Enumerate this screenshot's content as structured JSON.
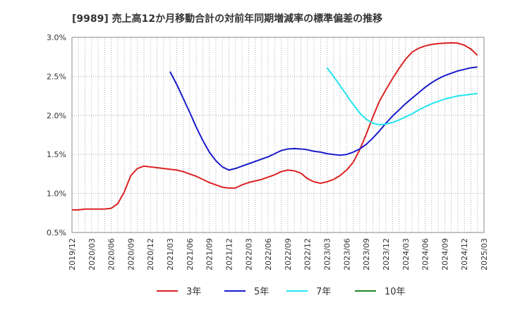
{
  "chart_data": {
    "type": "line",
    "title": "[9989]  売上高12か月移動合計の対前年同期増減率の標準偏差の推移",
    "xlabel": "",
    "ylabel": "",
    "ylim": [
      0.5,
      3.0
    ],
    "y_ticks": [
      "0.5%",
      "1.0%",
      "1.5%",
      "2.0%",
      "2.5%",
      "3.0%"
    ],
    "y_tick_values": [
      0.5,
      1.0,
      1.5,
      2.0,
      2.5,
      3.0
    ],
    "x_ticks": [
      "2019/12",
      "2020/03",
      "2020/06",
      "2020/09",
      "2020/12",
      "2021/03",
      "2021/06",
      "2021/09",
      "2021/12",
      "2022/03",
      "2022/06",
      "2022/09",
      "2022/12",
      "2023/03",
      "2023/06",
      "2023/09",
      "2023/12",
      "2024/03",
      "2024/06",
      "2024/09",
      "2024/12",
      "2025/03"
    ],
    "grid": true,
    "legend_position": "bottom",
    "series": [
      {
        "name": "3年",
        "color": "#dd2222",
        "points": [
          [
            0,
            0.79
          ],
          [
            1,
            0.79
          ],
          [
            2,
            0.8
          ],
          [
            3,
            0.8
          ],
          [
            4,
            0.8
          ],
          [
            5,
            0.8
          ],
          [
            6,
            0.81
          ],
          [
            7,
            0.87
          ],
          [
            8,
            1.02
          ],
          [
            9,
            1.23
          ],
          [
            10,
            1.32
          ],
          [
            11,
            1.35
          ],
          [
            12,
            1.34
          ],
          [
            13,
            1.33
          ],
          [
            14,
            1.32
          ],
          [
            15,
            1.31
          ],
          [
            16,
            1.3
          ],
          [
            17,
            1.28
          ],
          [
            18,
            1.25
          ],
          [
            19,
            1.22
          ],
          [
            20,
            1.18
          ],
          [
            21,
            1.14
          ],
          [
            22,
            1.11
          ],
          [
            23,
            1.08
          ],
          [
            24,
            1.07
          ],
          [
            25,
            1.07
          ],
          [
            26,
            1.11
          ],
          [
            27,
            1.14
          ],
          [
            28,
            1.16
          ],
          [
            29,
            1.18
          ],
          [
            30,
            1.21
          ],
          [
            31,
            1.24
          ],
          [
            32,
            1.28
          ],
          [
            33,
            1.3
          ],
          [
            34,
            1.29
          ],
          [
            35,
            1.26
          ],
          [
            36,
            1.19
          ],
          [
            37,
            1.15
          ],
          [
            38,
            1.13
          ],
          [
            39,
            1.15
          ],
          [
            40,
            1.18
          ],
          [
            41,
            1.23
          ],
          [
            42,
            1.3
          ],
          [
            43,
            1.4
          ],
          [
            44,
            1.56
          ],
          [
            45,
            1.76
          ],
          [
            46,
            1.98
          ],
          [
            47,
            2.18
          ],
          [
            48,
            2.33
          ],
          [
            49,
            2.47
          ],
          [
            50,
            2.6
          ],
          [
            51,
            2.72
          ],
          [
            52,
            2.81
          ],
          [
            53,
            2.86
          ],
          [
            54,
            2.89
          ],
          [
            55,
            2.91
          ],
          [
            56,
            2.92
          ],
          [
            57,
            2.925
          ],
          [
            58,
            2.93
          ],
          [
            59,
            2.925
          ],
          [
            60,
            2.9
          ],
          [
            61,
            2.85
          ],
          [
            62,
            2.77
          ]
        ]
      },
      {
        "name": "5年",
        "color": "#1a1acc",
        "points": [
          [
            15,
            2.56
          ],
          [
            16,
            2.4
          ],
          [
            17,
            2.22
          ],
          [
            18,
            2.04
          ],
          [
            19,
            1.85
          ],
          [
            20,
            1.68
          ],
          [
            21,
            1.53
          ],
          [
            22,
            1.42
          ],
          [
            23,
            1.34
          ],
          [
            24,
            1.3
          ],
          [
            25,
            1.32
          ],
          [
            26,
            1.35
          ],
          [
            27,
            1.38
          ],
          [
            28,
            1.41
          ],
          [
            29,
            1.44
          ],
          [
            30,
            1.47
          ],
          [
            31,
            1.51
          ],
          [
            32,
            1.55
          ],
          [
            33,
            1.57
          ],
          [
            34,
            1.575
          ],
          [
            35,
            1.57
          ],
          [
            36,
            1.56
          ],
          [
            37,
            1.54
          ],
          [
            38,
            1.53
          ],
          [
            39,
            1.51
          ],
          [
            40,
            1.5
          ],
          [
            41,
            1.49
          ],
          [
            42,
            1.5
          ],
          [
            43,
            1.53
          ],
          [
            44,
            1.57
          ],
          [
            45,
            1.63
          ],
          [
            46,
            1.71
          ],
          [
            47,
            1.8
          ],
          [
            48,
            1.9
          ],
          [
            49,
            1.99
          ],
          [
            50,
            2.07
          ],
          [
            51,
            2.15
          ],
          [
            52,
            2.22
          ],
          [
            53,
            2.29
          ],
          [
            54,
            2.36
          ],
          [
            55,
            2.42
          ],
          [
            56,
            2.47
          ],
          [
            57,
            2.51
          ],
          [
            58,
            2.54
          ],
          [
            59,
            2.57
          ],
          [
            60,
            2.59
          ],
          [
            61,
            2.61
          ],
          [
            62,
            2.62
          ]
        ]
      },
      {
        "name": "7年",
        "color": "#22e5ee",
        "points": [
          [
            39,
            2.61
          ],
          [
            40,
            2.5
          ],
          [
            41,
            2.38
          ],
          [
            42,
            2.26
          ],
          [
            43,
            2.14
          ],
          [
            44,
            2.03
          ],
          [
            45,
            1.95
          ],
          [
            46,
            1.9
          ],
          [
            47,
            1.88
          ],
          [
            48,
            1.89
          ],
          [
            49,
            1.91
          ],
          [
            50,
            1.94
          ],
          [
            51,
            1.98
          ],
          [
            52,
            2.02
          ],
          [
            53,
            2.07
          ],
          [
            54,
            2.11
          ],
          [
            55,
            2.15
          ],
          [
            56,
            2.18
          ],
          [
            57,
            2.21
          ],
          [
            58,
            2.23
          ],
          [
            59,
            2.25
          ],
          [
            60,
            2.26
          ],
          [
            61,
            2.27
          ],
          [
            62,
            2.28
          ]
        ]
      },
      {
        "name": "10年",
        "color": "#228822",
        "points": []
      }
    ]
  }
}
